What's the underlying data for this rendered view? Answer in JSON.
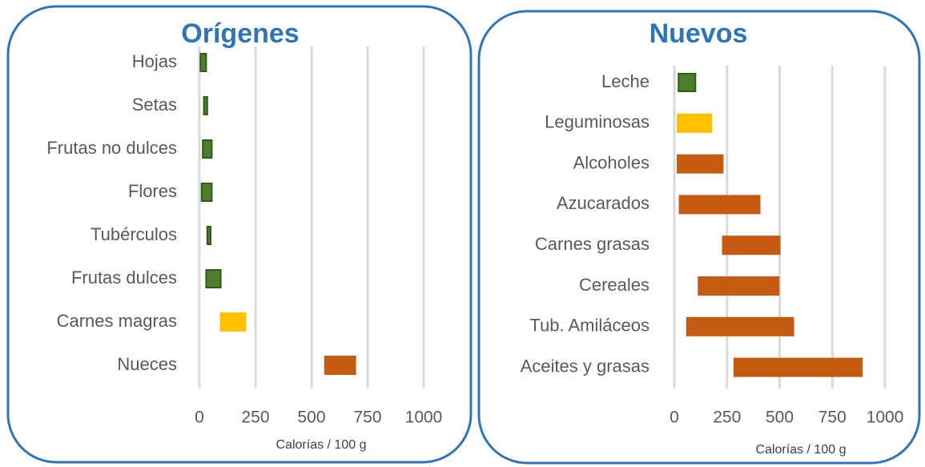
{
  "chart_data": [
    {
      "type": "range_bar",
      "title": "Orígenes",
      "x_label": "Calorías / 100 g",
      "categories": [
        "Hojas",
        "Setas",
        "Frutas no dulces",
        "Flores",
        "Tubérculos",
        "Frutas dulces",
        "Carnes magras",
        "Nueces"
      ],
      "low": [
        5,
        20,
        15,
        10,
        35,
        30,
        95,
        560
      ],
      "high": [
        30,
        35,
        55,
        55,
        50,
        95,
        205,
        695
      ],
      "colors": [
        "#4e7d2c",
        "#4e7d2c",
        "#4e7d2c",
        "#4e7d2c",
        "#4e7d2c",
        "#4e7d2c",
        "#ffc000",
        "#c55a11"
      ],
      "xlim": [
        0,
        1000
      ],
      "xticks": [
        0,
        250,
        500,
        750,
        1000
      ],
      "grid": true
    },
    {
      "type": "range_bar",
      "title": "Nuevos",
      "x_label": "Calorías / 100 g",
      "categories": [
        "Leche",
        "Leguminosas",
        "Alcoholes",
        "Azucarados",
        "Carnes grasas",
        "Cereales",
        "Tub. Amiláceos",
        "Aceites y grasas"
      ],
      "low": [
        20,
        15,
        15,
        25,
        230,
        115,
        60,
        285
      ],
      "high": [
        100,
        175,
        230,
        405,
        500,
        495,
        565,
        890
      ],
      "colors": [
        "#4e7d2c",
        "#ffc000",
        "#c55a11",
        "#c55a11",
        "#c55a11",
        "#c55a11",
        "#c55a11",
        "#c55a11"
      ],
      "xlim": [
        0,
        1000
      ],
      "xticks": [
        0,
        250,
        500,
        750,
        1000
      ],
      "grid": true
    }
  ]
}
